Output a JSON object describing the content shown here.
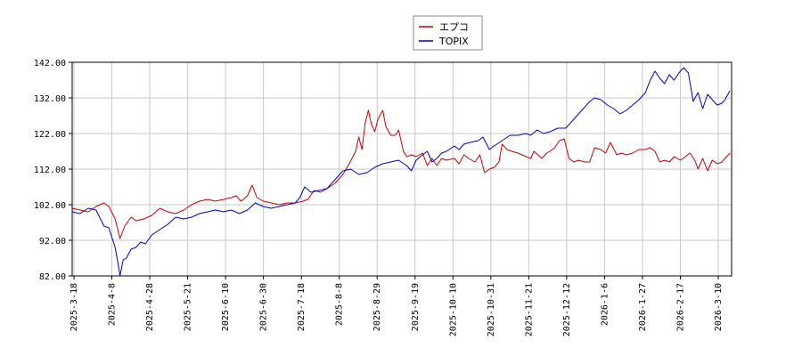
{
  "chart_data": {
    "type": "line",
    "title": "",
    "xlabel": "",
    "ylabel": "",
    "ylim": [
      82,
      142
    ],
    "yticks": [
      "82.00",
      "92.00",
      "102.00",
      "112.00",
      "122.00",
      "132.00",
      "142.00"
    ],
    "xticks": [
      "2025-3-18",
      "2025-4-8",
      "2025-4-28",
      "2025-5-21",
      "2025-6-10",
      "2025-6-30",
      "2025-7-18",
      "2025-8-8",
      "2025-8-29",
      "2025-9-19",
      "2025-10-10",
      "2025-10-31",
      "2025-11-21",
      "2025-12-12",
      "2026-1-6",
      "2026-1-27",
      "2026-2-17",
      "2026-3-10"
    ],
    "grid": true,
    "legend_position": "top-center",
    "series": [
      {
        "name": "エプコ",
        "color": "#cc0000",
        "points": [
          [
            0,
            101.0
          ],
          [
            0.5,
            100.5
          ],
          [
            1,
            100.0
          ],
          [
            1.5,
            101.5
          ],
          [
            2,
            102.5
          ],
          [
            2.3,
            101.5
          ],
          [
            2.7,
            98.0
          ],
          [
            3.0,
            92.5
          ],
          [
            3.3,
            96.0
          ],
          [
            3.7,
            98.5
          ],
          [
            4,
            97.5
          ],
          [
            4.5,
            98.0
          ],
          [
            5,
            99.0
          ],
          [
            5.5,
            101.0
          ],
          [
            6,
            100.0
          ],
          [
            6.5,
            99.5
          ],
          [
            7,
            100.5
          ],
          [
            7.5,
            102.0
          ],
          [
            8,
            103.0
          ],
          [
            8.5,
            103.5
          ],
          [
            9,
            103.0
          ],
          [
            9.5,
            103.5
          ],
          [
            10,
            104.0
          ],
          [
            10.3,
            104.5
          ],
          [
            10.6,
            103.0
          ],
          [
            11,
            104.5
          ],
          [
            11.3,
            107.5
          ],
          [
            11.6,
            104.0
          ],
          [
            12,
            103.0
          ],
          [
            12.5,
            102.5
          ],
          [
            13,
            102.0
          ],
          [
            13.5,
            102.5
          ],
          [
            14,
            102.5
          ],
          [
            14.5,
            103.0
          ],
          [
            14.8,
            103.5
          ],
          [
            15.2,
            106.0
          ],
          [
            15.6,
            105.5
          ],
          [
            16,
            106.5
          ],
          [
            16.5,
            108.0
          ],
          [
            17,
            110.5
          ],
          [
            17.4,
            113.5
          ],
          [
            17.8,
            117.0
          ],
          [
            18.0,
            121.0
          ],
          [
            18.2,
            117.5
          ],
          [
            18.4,
            125.0
          ],
          [
            18.6,
            128.5
          ],
          [
            18.8,
            124.5
          ],
          [
            19.0,
            122.5
          ],
          [
            19.2,
            126.0
          ],
          [
            19.5,
            128.5
          ],
          [
            19.7,
            124.0
          ],
          [
            20.0,
            121.5
          ],
          [
            20.3,
            121.5
          ],
          [
            20.5,
            123.0
          ],
          [
            20.8,
            117.0
          ],
          [
            21.0,
            115.5
          ],
          [
            21.3,
            116.0
          ],
          [
            21.6,
            115.5
          ],
          [
            22.0,
            116.5
          ],
          [
            22.3,
            113.0
          ],
          [
            22.6,
            115.0
          ],
          [
            22.9,
            113.0
          ],
          [
            23.2,
            115.0
          ],
          [
            23.5,
            114.5
          ],
          [
            24.0,
            115.0
          ],
          [
            24.3,
            113.5
          ],
          [
            24.6,
            116.0
          ],
          [
            24.9,
            115.0
          ],
          [
            25.3,
            114.0
          ],
          [
            25.6,
            116.0
          ],
          [
            25.9,
            111.0
          ],
          [
            26.2,
            112.0
          ],
          [
            26.5,
            112.5
          ],
          [
            26.8,
            114.0
          ],
          [
            27.0,
            119.0
          ],
          [
            27.3,
            117.5
          ],
          [
            27.6,
            117.0
          ],
          [
            28.0,
            116.5
          ],
          [
            28.5,
            115.5
          ],
          [
            28.8,
            115.0
          ],
          [
            29.0,
            117.0
          ],
          [
            29.5,
            115.0
          ],
          [
            29.8,
            116.5
          ],
          [
            30.0,
            117.0
          ],
          [
            30.3,
            118.0
          ],
          [
            30.6,
            120.0
          ],
          [
            30.9,
            120.5
          ],
          [
            31.2,
            115.0
          ],
          [
            31.5,
            114.0
          ],
          [
            31.8,
            114.5
          ],
          [
            32.2,
            114.0
          ],
          [
            32.5,
            114.0
          ],
          [
            32.8,
            118.0
          ],
          [
            33.2,
            117.5
          ],
          [
            33.5,
            116.5
          ],
          [
            33.8,
            119.5
          ],
          [
            34.2,
            116.0
          ],
          [
            34.5,
            116.5
          ],
          [
            34.8,
            116.0
          ],
          [
            35.2,
            116.5
          ],
          [
            35.6,
            117.5
          ],
          [
            36.0,
            117.5
          ],
          [
            36.3,
            118.0
          ],
          [
            36.6,
            117.0
          ],
          [
            36.9,
            114.0
          ],
          [
            37.2,
            114.5
          ],
          [
            37.5,
            114.0
          ],
          [
            37.8,
            115.5
          ],
          [
            38.2,
            114.5
          ],
          [
            38.5,
            115.5
          ],
          [
            38.8,
            116.5
          ],
          [
            39.1,
            114.5
          ],
          [
            39.3,
            112.0
          ],
          [
            39.6,
            115.0
          ],
          [
            39.9,
            111.5
          ],
          [
            40.2,
            114.5
          ],
          [
            40.5,
            113.5
          ],
          [
            40.8,
            114.0
          ],
          [
            41.0,
            115.0
          ],
          [
            41.3,
            116.5
          ]
        ]
      },
      {
        "name": "TOPIX",
        "color": "#0000cc",
        "points": [
          [
            0,
            100.0
          ],
          [
            0.5,
            99.5
          ],
          [
            1,
            101.0
          ],
          [
            1.5,
            100.5
          ],
          [
            2,
            96.0
          ],
          [
            2.3,
            95.5
          ],
          [
            2.7,
            90.0
          ],
          [
            2.9,
            85.0
          ],
          [
            3.0,
            82.0
          ],
          [
            3.2,
            86.5
          ],
          [
            3.4,
            87.0
          ],
          [
            3.7,
            89.5
          ],
          [
            4.0,
            90.0
          ],
          [
            4.3,
            91.5
          ],
          [
            4.6,
            91.0
          ],
          [
            5.0,
            93.5
          ],
          [
            5.5,
            95.0
          ],
          [
            6.0,
            96.5
          ],
          [
            6.5,
            98.5
          ],
          [
            7.0,
            98.0
          ],
          [
            7.5,
            98.5
          ],
          [
            8.0,
            99.5
          ],
          [
            8.5,
            100.0
          ],
          [
            9.0,
            100.5
          ],
          [
            9.5,
            100.0
          ],
          [
            10.0,
            100.5
          ],
          [
            10.5,
            99.5
          ],
          [
            11.0,
            100.5
          ],
          [
            11.5,
            102.5
          ],
          [
            12.0,
            101.5
          ],
          [
            12.5,
            101.0
          ],
          [
            13.0,
            101.5
          ],
          [
            13.5,
            102.0
          ],
          [
            14.0,
            102.5
          ],
          [
            14.3,
            104.0
          ],
          [
            14.6,
            107.0
          ],
          [
            15.0,
            105.5
          ],
          [
            15.5,
            106.0
          ],
          [
            16.0,
            106.5
          ],
          [
            16.5,
            109.0
          ],
          [
            17.0,
            111.5
          ],
          [
            17.5,
            112.0
          ],
          [
            18.0,
            110.5
          ],
          [
            18.5,
            111.0
          ],
          [
            19.0,
            112.5
          ],
          [
            19.5,
            113.5
          ],
          [
            20.0,
            114.0
          ],
          [
            20.5,
            114.5
          ],
          [
            21.0,
            113.0
          ],
          [
            21.3,
            111.5
          ],
          [
            21.6,
            114.5
          ],
          [
            22.0,
            116.0
          ],
          [
            22.3,
            117.0
          ],
          [
            22.6,
            114.0
          ],
          [
            22.9,
            115.0
          ],
          [
            23.2,
            116.5
          ],
          [
            23.5,
            117.0
          ],
          [
            24.0,
            118.5
          ],
          [
            24.3,
            117.5
          ],
          [
            24.6,
            119.0
          ],
          [
            25.0,
            119.5
          ],
          [
            25.5,
            120.0
          ],
          [
            25.8,
            121.0
          ],
          [
            26.2,
            117.5
          ],
          [
            26.5,
            118.5
          ],
          [
            27.0,
            120.0
          ],
          [
            27.5,
            121.5
          ],
          [
            28.0,
            121.5
          ],
          [
            28.5,
            122.0
          ],
          [
            28.8,
            121.5
          ],
          [
            29.2,
            123.0
          ],
          [
            29.6,
            122.0
          ],
          [
            30.0,
            122.5
          ],
          [
            30.5,
            123.5
          ],
          [
            31.0,
            123.5
          ],
          [
            31.5,
            126.0
          ],
          [
            32.0,
            128.5
          ],
          [
            32.5,
            131.0
          ],
          [
            32.8,
            132.0
          ],
          [
            33.2,
            131.5
          ],
          [
            33.6,
            130.0
          ],
          [
            34.0,
            129.0
          ],
          [
            34.4,
            127.5
          ],
          [
            34.8,
            128.5
          ],
          [
            35.2,
            130.0
          ],
          [
            35.6,
            131.5
          ],
          [
            36.0,
            133.5
          ],
          [
            36.3,
            137.0
          ],
          [
            36.6,
            139.5
          ],
          [
            36.9,
            137.5
          ],
          [
            37.2,
            136.0
          ],
          [
            37.5,
            138.5
          ],
          [
            37.8,
            137.0
          ],
          [
            38.1,
            139.0
          ],
          [
            38.4,
            140.5
          ],
          [
            38.7,
            139.0
          ],
          [
            39.0,
            131.0
          ],
          [
            39.3,
            133.5
          ],
          [
            39.6,
            129.0
          ],
          [
            39.9,
            133.0
          ],
          [
            40.2,
            131.5
          ],
          [
            40.5,
            130.0
          ],
          [
            40.8,
            130.5
          ],
          [
            41.0,
            131.5
          ],
          [
            41.3,
            134.0
          ]
        ]
      }
    ]
  }
}
